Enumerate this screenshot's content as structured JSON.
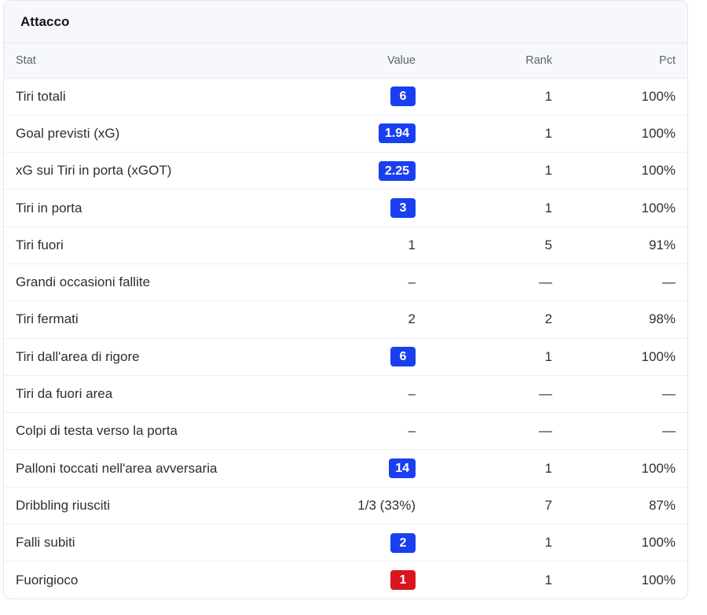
{
  "card": {
    "title": "Attacco"
  },
  "table": {
    "columns": [
      "Stat",
      "Value",
      "Rank",
      "Pct"
    ],
    "rows": [
      {
        "stat": "Tiri totali",
        "value": "6",
        "badge": "blue",
        "rank": "1",
        "pct": "100%"
      },
      {
        "stat": "Goal previsti (xG)",
        "value": "1.94",
        "badge": "blue",
        "rank": "1",
        "pct": "100%"
      },
      {
        "stat": "xG sui Tiri in porta (xGOT)",
        "value": "2.25",
        "badge": "blue",
        "rank": "1",
        "pct": "100%"
      },
      {
        "stat": "Tiri in porta",
        "value": "3",
        "badge": "blue",
        "rank": "1",
        "pct": "100%"
      },
      {
        "stat": "Tiri fuori",
        "value": "1",
        "badge": "",
        "rank": "5",
        "pct": "91%"
      },
      {
        "stat": "Grandi occasioni fallite",
        "value": "–",
        "badge": "",
        "rank": "—",
        "pct": "—"
      },
      {
        "stat": "Tiri fermati",
        "value": "2",
        "badge": "",
        "rank": "2",
        "pct": "98%"
      },
      {
        "stat": "Tiri dall'area di rigore",
        "value": "6",
        "badge": "blue",
        "rank": "1",
        "pct": "100%"
      },
      {
        "stat": "Tiri da fuori area",
        "value": "–",
        "badge": "",
        "rank": "—",
        "pct": "—"
      },
      {
        "stat": "Colpi di testa verso la porta",
        "value": "–",
        "badge": "",
        "rank": "—",
        "pct": "—"
      },
      {
        "stat": "Palloni toccati nell'area avversaria",
        "value": "14",
        "badge": "blue",
        "rank": "1",
        "pct": "100%"
      },
      {
        "stat": "Dribbling riusciti",
        "value": "1/3 (33%)",
        "badge": "",
        "rank": "7",
        "pct": "87%"
      },
      {
        "stat": "Falli subiti",
        "value": "2",
        "badge": "blue",
        "rank": "1",
        "pct": "100%"
      },
      {
        "stat": "Fuorigioco",
        "value": "1",
        "badge": "red",
        "rank": "1",
        "pct": "100%"
      }
    ]
  },
  "colors": {
    "badge_blue": "#1a3ff0",
    "badge_red": "#d9151e",
    "header_bg": "#f6f8fb"
  }
}
